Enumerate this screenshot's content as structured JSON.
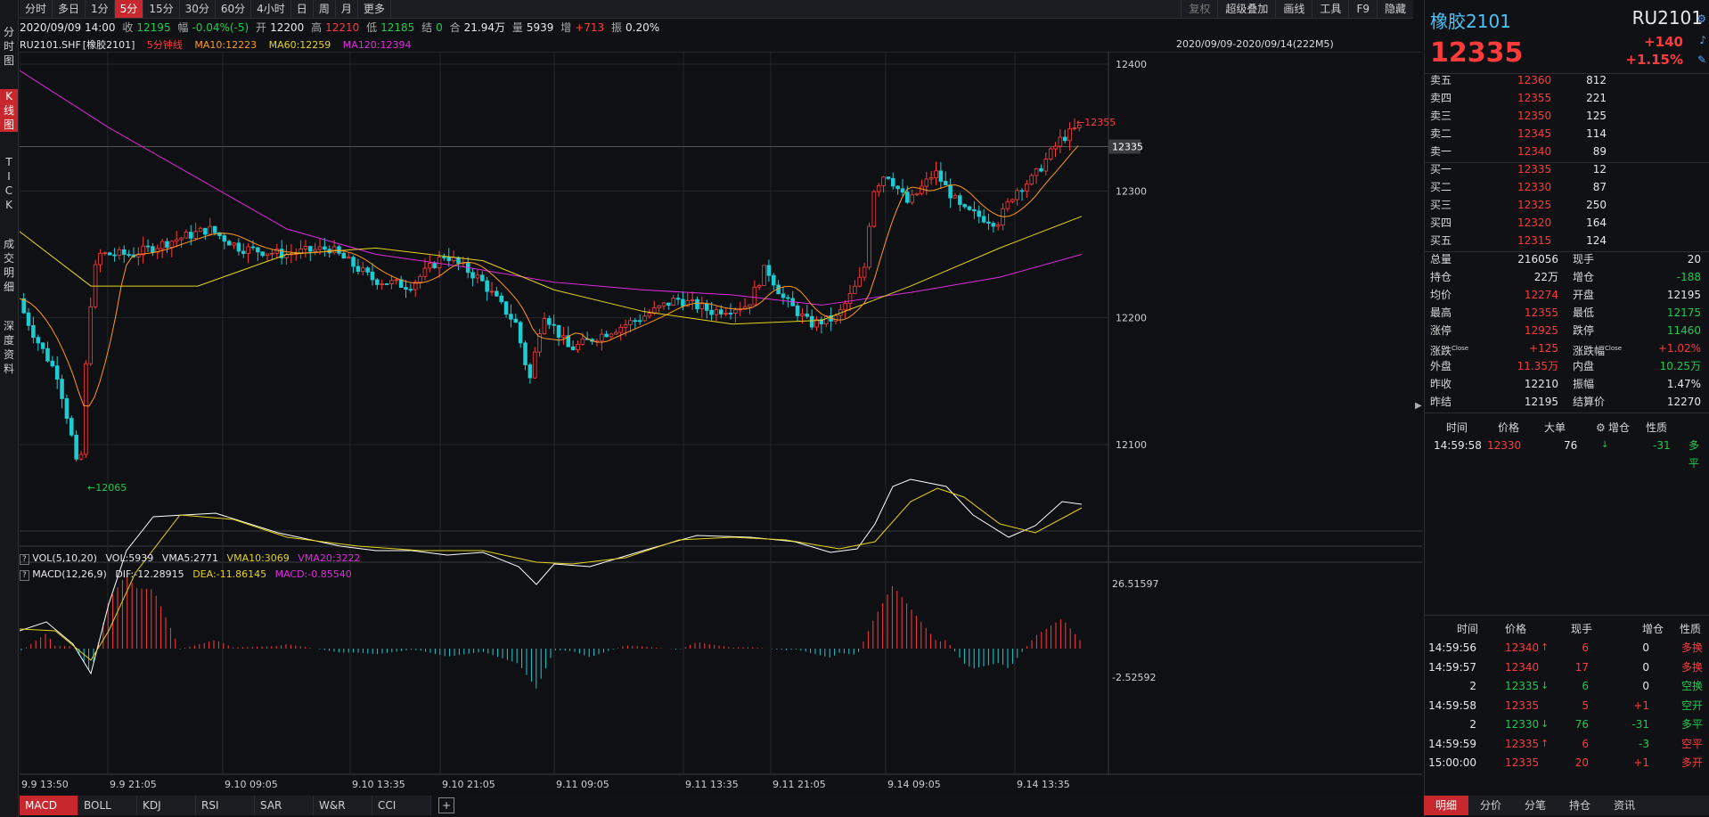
{
  "top_tabs": [
    "分时",
    "多日",
    "1分",
    "5分",
    "15分",
    "30分",
    "60分",
    "4小时",
    "日",
    "周",
    "月",
    "更多"
  ],
  "active_top_tab": "5分",
  "top_right_tabs": [
    "复权",
    "超级叠加",
    "画线",
    "工具",
    "F9",
    "隐藏"
  ],
  "side_tabs": [
    "分\n时\n图",
    "K\n线\n图",
    "T\nI\nC\nK",
    "成\n交\n明\n细",
    "深\n度\n资\n料"
  ],
  "info": {
    "datetime": "2020/09/09 14:00",
    "close_label": "收",
    "close": "12195",
    "range_label": "幅",
    "range": "-0.04%(-5)",
    "open_label": "开",
    "open": "12200",
    "high_label": "高",
    "high": "12210",
    "low_label": "低",
    "low": "12185",
    "settle_label": "结",
    "settle": "0",
    "amount_label": "合",
    "amount": "21.94万",
    "vol_label": "量",
    "vol": "5939",
    "inc_label": "增",
    "inc": "+713",
    "amp_label": "振",
    "amp": "0.20%"
  },
  "ma_line": {
    "symbol": "RU2101.SHF",
    "name": "[橡胶2101]",
    "period": "5分钟线",
    "ma10": "MA10:12223",
    "ma60": "MA60:12259",
    "ma120": "MA120:12394"
  },
  "date_range": "2020/09/09-2020/09/14(222M5)",
  "vol_line": {
    "label": "VOL(5,10,20)",
    "vol": "VOL:5939",
    "vma5": "VMA5:2771",
    "vma10": "VMA10:3069",
    "vma20": "VMA20:3222"
  },
  "macd_line": {
    "label": "MACD(12,26,9)",
    "dif": "DIF:-12.28915",
    "dea": "DEA:-11.86145",
    "macd": "MACD:-0.85540"
  },
  "price_axis": [
    "12400",
    "12300",
    "12200",
    "12100"
  ],
  "current_price_tag": "12335",
  "high_marker": "12355",
  "low_marker": "12065",
  "macd_axis": [
    "26.51597",
    "-2.52592"
  ],
  "time_axis": [
    "9.9 13:50",
    "9.9 21:05",
    "9.10 09:05",
    "9.10 13:35",
    "9.10 21:05",
    "9.11 09:05",
    "9.11 13:35",
    "9.11 21:05",
    "9.14 09:05",
    "9.14 13:35"
  ],
  "bottom_tabs": [
    "MACD",
    "BOLL",
    "KDJ",
    "RSI",
    "SAR",
    "W&R",
    "CCI"
  ],
  "right_panel": {
    "name": "橡胶2101",
    "code": "RU2101",
    "price": "12335",
    "change": "+140",
    "change_pct": "+1.15%",
    "asks": [
      {
        "label": "卖五",
        "price": "12360",
        "vol": "812"
      },
      {
        "label": "卖四",
        "price": "12355",
        "vol": "221"
      },
      {
        "label": "卖三",
        "price": "12350",
        "vol": "125"
      },
      {
        "label": "卖二",
        "price": "12345",
        "vol": "114"
      },
      {
        "label": "卖一",
        "price": "12340",
        "vol": "89"
      }
    ],
    "bids": [
      {
        "label": "买一",
        "price": "12335",
        "vol": "12"
      },
      {
        "label": "买二",
        "price": "12330",
        "vol": "87"
      },
      {
        "label": "买三",
        "price": "12325",
        "vol": "250"
      },
      {
        "label": "买四",
        "price": "12320",
        "vol": "164"
      },
      {
        "label": "买五",
        "price": "12315",
        "vol": "124"
      }
    ],
    "stats": [
      [
        {
          "k": "总量",
          "v": "216056",
          "c": "white"
        },
        {
          "k": "现手",
          "v": "20",
          "c": "white"
        }
      ],
      [
        {
          "k": "持仓",
          "v": "22万",
          "c": "white"
        },
        {
          "k": "增仓",
          "v": "-188",
          "c": "green"
        }
      ],
      [
        {
          "k": "均价",
          "v": "12274",
          "c": "red"
        },
        {
          "k": "开盘",
          "v": "12195",
          "c": "white"
        }
      ],
      [
        {
          "k": "最高",
          "v": "12355",
          "c": "red"
        },
        {
          "k": "最低",
          "v": "12175",
          "c": "green"
        }
      ],
      [
        {
          "k": "涨停",
          "v": "12925",
          "c": "red"
        },
        {
          "k": "跌停",
          "v": "11460",
          "c": "green"
        }
      ],
      [
        {
          "k": "涨跌",
          "sup": "Close",
          "v": "+125",
          "c": "red"
        },
        {
          "k": "涨跌幅",
          "sup": "Close",
          "v": "+1.02%",
          "c": "red"
        }
      ],
      [
        {
          "k": "外盘",
          "v": "11.35万",
          "c": "red"
        },
        {
          "k": "内盘",
          "v": "10.25万",
          "c": "green"
        }
      ],
      [
        {
          "k": "昨收",
          "v": "12210",
          "c": "white"
        },
        {
          "k": "振幅",
          "v": "1.47%",
          "c": "white"
        }
      ],
      [
        {
          "k": "昨结",
          "v": "12195",
          "c": "white"
        },
        {
          "k": "结算价",
          "v": "12270",
          "c": "white"
        }
      ]
    ],
    "big_header": [
      "时间",
      "价格",
      "大单",
      "增仓",
      "性质"
    ],
    "big_rows": [
      {
        "time": "14:59:58",
        "price": "12330",
        "vol": "76",
        "arrow": "↓",
        "inc": "-31",
        "type": "多平"
      }
    ],
    "tick_header": [
      "时间",
      "价格",
      "现手",
      "增仓",
      "性质"
    ],
    "tick_rows": [
      {
        "time": "14:59:56",
        "price": "12340",
        "arrow": "↑",
        "ac": "red",
        "vol": "6",
        "inc": "0",
        "ic": "white",
        "type": "多换",
        "tc": "red"
      },
      {
        "time": "14:59:57",
        "price": "12340",
        "arrow": "",
        "ac": "red",
        "vol": "17",
        "inc": "0",
        "ic": "white",
        "type": "多换",
        "tc": "red"
      },
      {
        "time": "2",
        "price": "12335",
        "arrow": "↓",
        "ac": "green",
        "vol": "6",
        "inc": "0",
        "ic": "white",
        "type": "空换",
        "tc": "green"
      },
      {
        "time": "14:59:58",
        "price": "12335",
        "arrow": "",
        "ac": "red",
        "vol": "5",
        "inc": "+1",
        "ic": "red",
        "type": "空开",
        "tc": "green"
      },
      {
        "time": "2",
        "price": "12330",
        "arrow": "↓",
        "ac": "green",
        "vol": "76",
        "inc": "-31",
        "ic": "green",
        "type": "多平",
        "tc": "green"
      },
      {
        "time": "14:59:59",
        "price": "12335",
        "arrow": "↑",
        "ac": "red",
        "vol": "6",
        "inc": "-3",
        "ic": "green",
        "type": "空平",
        "tc": "red"
      },
      {
        "time": "15:00:00",
        "price": "12335",
        "arrow": "",
        "ac": "red",
        "vol": "20",
        "inc": "+1",
        "ic": "red",
        "type": "多开",
        "tc": "red"
      }
    ],
    "tabs": [
      "明细",
      "分价",
      "分笔",
      "持仓",
      "资讯"
    ]
  },
  "colors": {
    "up": "#ff3b3b",
    "down": "#1ecbd3",
    "ma10": "#ff9a1f",
    "ma60": "#e6d31c",
    "ma120": "#e02be0",
    "dif": "#ffffff",
    "dea": "#e6d31c"
  }
}
